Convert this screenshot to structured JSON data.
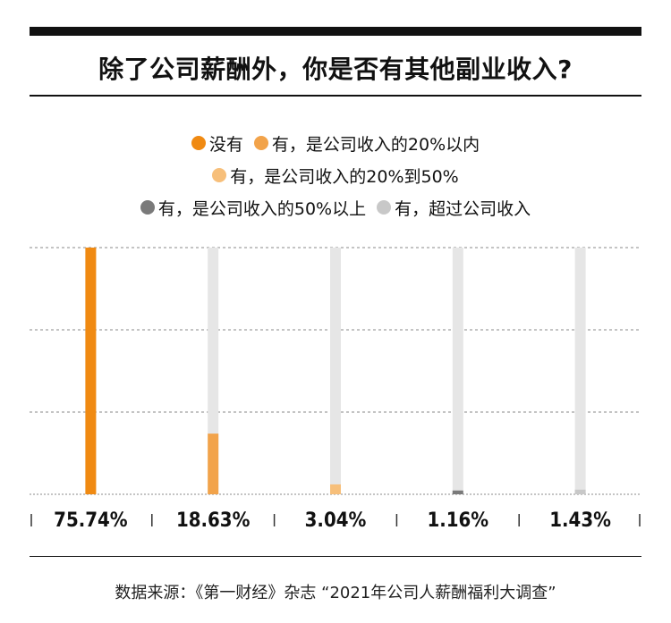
{
  "title": "除了公司薪酬外，你是否有其他副业收入?",
  "legend_rows": [
    [
      {
        "label": "没有",
        "color": "#f08a12"
      },
      {
        "label": "有，是公司收入的20%以内",
        "color": "#f2a34a"
      }
    ],
    [
      {
        "label": "有，是公司收入的20%到50%",
        "color": "#f7bf7a"
      }
    ],
    [
      {
        "label": "有，是公司收入的50%以上",
        "color": "#7a7a7a"
      },
      {
        "label": "有，超过公司收入",
        "color": "#c8c8c8"
      }
    ]
  ],
  "chart_data": {
    "type": "bar",
    "categories": [
      "没有",
      "有，是公司收入的20%以内",
      "有，是公司收入的20%到50%",
      "有，是公司收入的50%以上",
      "有，超过公司收入"
    ],
    "values": [
      75.74,
      18.63,
      3.04,
      1.16,
      1.43
    ],
    "value_labels": [
      "75.74%",
      "18.63%",
      "3.04%",
      "1.16%",
      "1.43%"
    ],
    "colors": [
      "#f08a12",
      "#f2a34a",
      "#f7bf7a",
      "#7a7a7a",
      "#c8c8c8"
    ],
    "track_color": "#e6e6e6",
    "ylim": [
      0,
      75.74
    ],
    "grid": true,
    "grid_style": "dotted",
    "legend_position": "top"
  },
  "source": "数据来源：《第一财经》杂志 “2021年公司人薪酬福利大调查”"
}
